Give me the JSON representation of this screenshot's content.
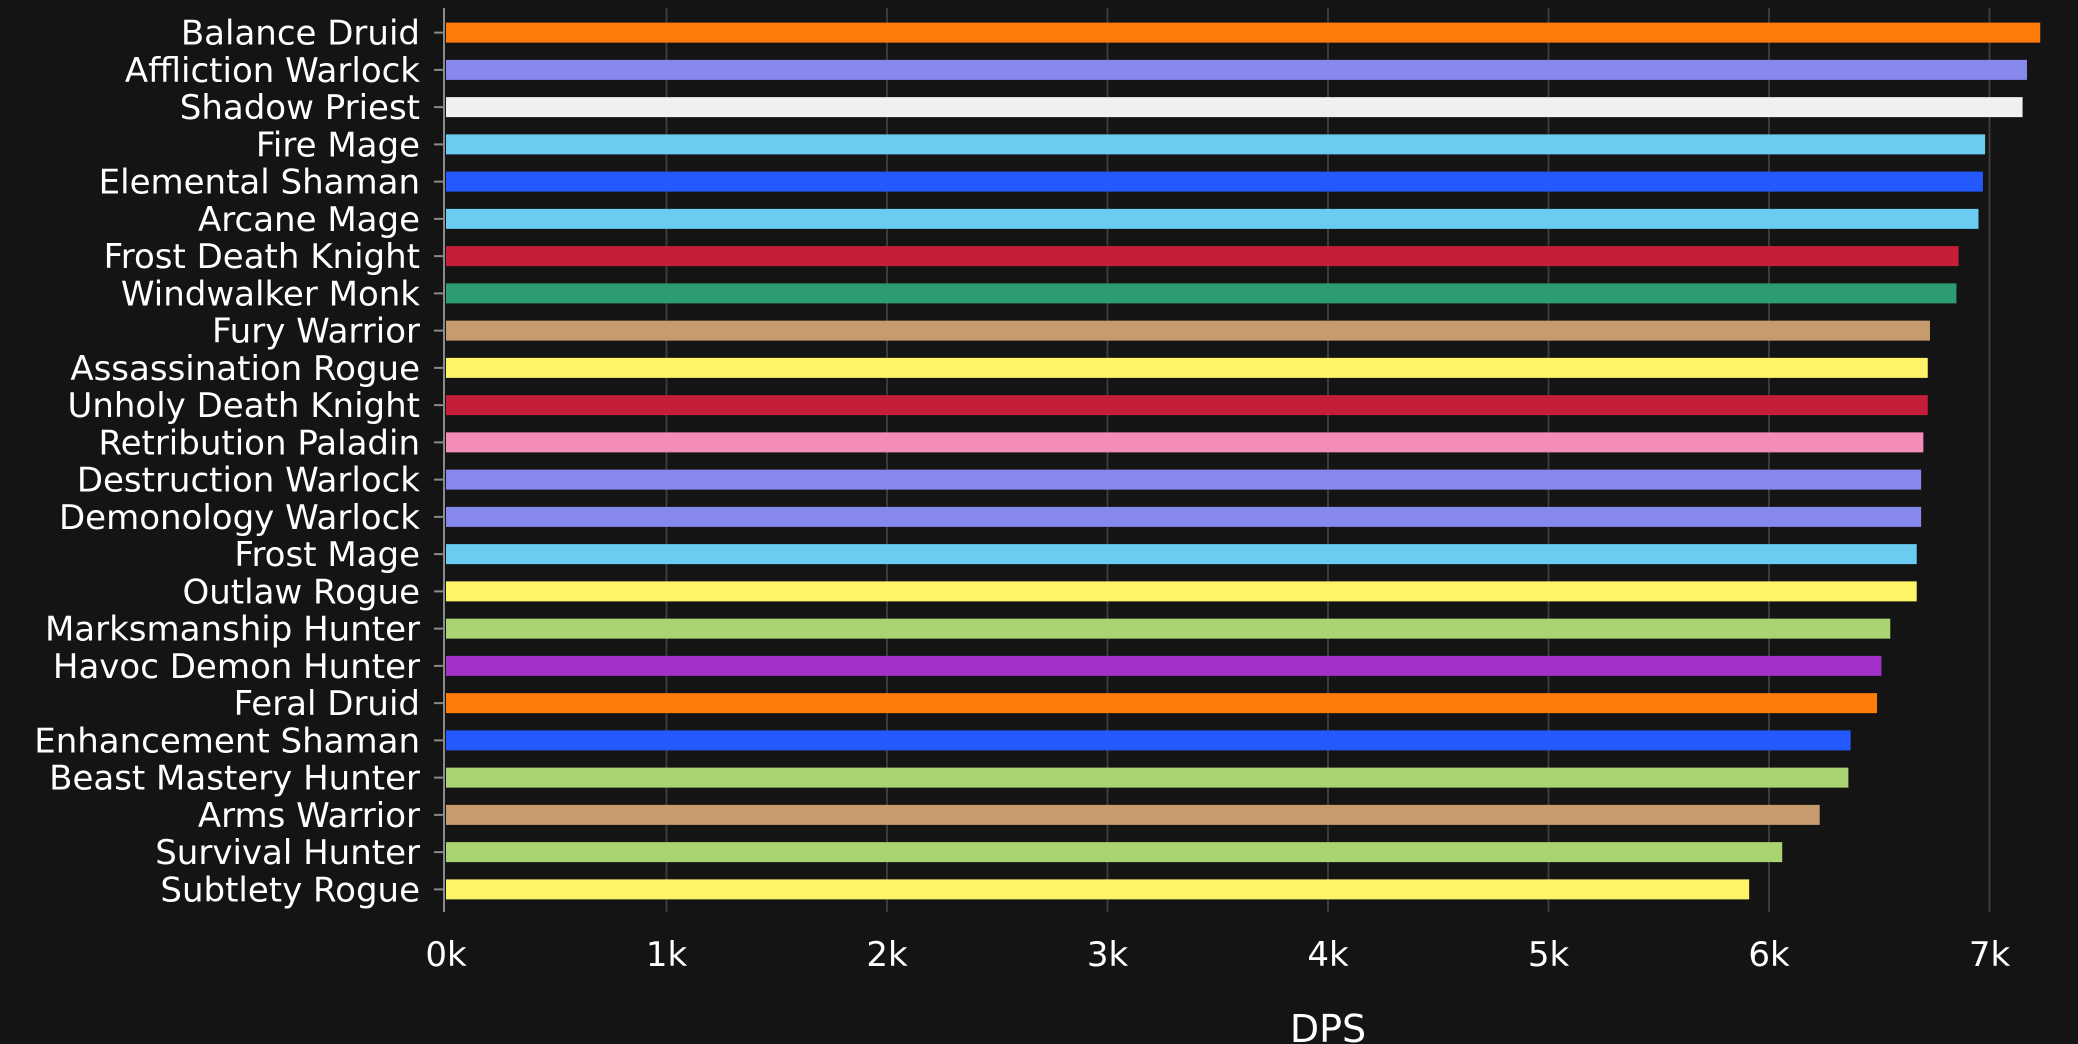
{
  "chart_data": {
    "type": "bar",
    "orientation": "horizontal",
    "xlabel": "DPS",
    "xlim": [
      0,
      7250
    ],
    "x_ticks": [
      0,
      1000,
      2000,
      3000,
      4000,
      5000,
      6000,
      7000
    ],
    "x_tick_labels": [
      "0k",
      "1k",
      "2k",
      "3k",
      "4k",
      "5k",
      "6k",
      "7k"
    ],
    "grid": "vertical",
    "legend": "none",
    "categories": [
      "Balance Druid",
      "Affliction Warlock",
      "Shadow Priest",
      "Fire Mage",
      "Elemental Shaman",
      "Arcane Mage",
      "Frost Death Knight",
      "Windwalker Monk",
      "Fury Warrior",
      "Assassination Rogue",
      "Unholy Death Knight",
      "Retribution Paladin",
      "Destruction Warlock",
      "Demonology Warlock",
      "Frost Mage",
      "Outlaw Rogue",
      "Marksmanship Hunter",
      "Havoc Demon Hunter",
      "Feral Druid",
      "Enhancement Shaman",
      "Beast Mastery Hunter",
      "Arms Warrior",
      "Survival Hunter",
      "Subtlety Rogue"
    ],
    "values": [
      7230,
      7170,
      7150,
      6980,
      6970,
      6950,
      6860,
      6850,
      6730,
      6720,
      6720,
      6700,
      6690,
      6690,
      6670,
      6670,
      6550,
      6510,
      6490,
      6370,
      6360,
      6230,
      6060,
      5910
    ],
    "colors": [
      "#FF7C0A",
      "#8788EE",
      "#F0F0F0",
      "#69CCF0",
      "#2459FF",
      "#69CCF0",
      "#C41E3A",
      "#2E9C73",
      "#C69B6D",
      "#FFF468",
      "#C41E3A",
      "#F48CBA",
      "#8788EE",
      "#8788EE",
      "#69CCF0",
      "#FFF468",
      "#AAD372",
      "#A330C9",
      "#FF7C0A",
      "#2459FF",
      "#AAD372",
      "#C69B6D",
      "#AAD372",
      "#FFF468"
    ]
  }
}
